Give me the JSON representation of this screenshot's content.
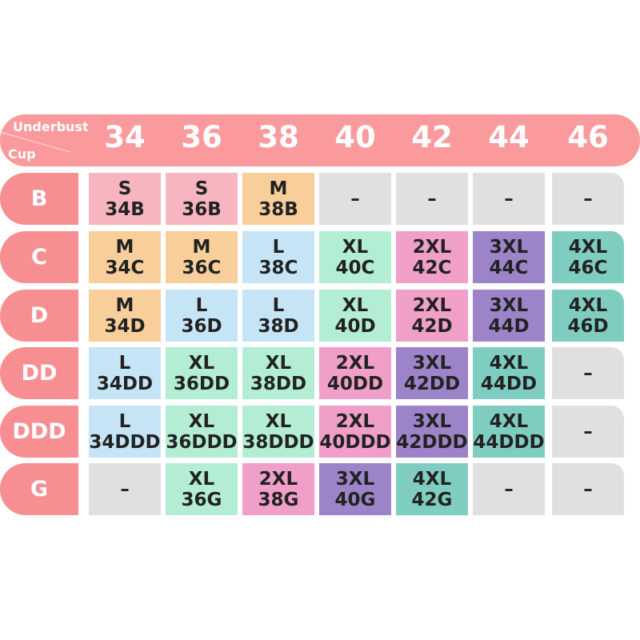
{
  "chart_data": {
    "type": "table",
    "corner_labels": {
      "top": "Underbust",
      "bottom": "Cup"
    },
    "columns": [
      "34",
      "36",
      "38",
      "40",
      "42",
      "44",
      "46"
    ],
    "colors": {
      "header": "#fa9a9c",
      "row_header": "#f78f92",
      "S": "#f7b6bf",
      "M": "#f8cf9b",
      "L": "#c5e5f6",
      "XL": "#b3eed4",
      "2XL": "#f09fc9",
      "3XL": "#9d84c8",
      "4XL": "#7fcdc1",
      "none": "#e0e0e0"
    },
    "rows": [
      {
        "cup": "B",
        "cells": [
          [
            "S",
            "34B"
          ],
          [
            "S",
            "36B"
          ],
          [
            "M",
            "38B"
          ],
          [
            "–",
            ""
          ],
          [
            "–",
            ""
          ],
          [
            "–",
            ""
          ],
          [
            "–",
            ""
          ]
        ]
      },
      {
        "cup": "C",
        "cells": [
          [
            "M",
            "34C"
          ],
          [
            "M",
            "36C"
          ],
          [
            "L",
            "38C"
          ],
          [
            "XL",
            "40C"
          ],
          [
            "2XL",
            "42C"
          ],
          [
            "3XL",
            "44C"
          ],
          [
            "4XL",
            "46C"
          ]
        ]
      },
      {
        "cup": "D",
        "cells": [
          [
            "M",
            "34D"
          ],
          [
            "L",
            "36D"
          ],
          [
            "L",
            "38D"
          ],
          [
            "XL",
            "40D"
          ],
          [
            "2XL",
            "42D"
          ],
          [
            "3XL",
            "44D"
          ],
          [
            "4XL",
            "46D"
          ]
        ]
      },
      {
        "cup": "DD",
        "cells": [
          [
            "L",
            "34DD"
          ],
          [
            "XL",
            "36DD"
          ],
          [
            "XL",
            "38DD"
          ],
          [
            "2XL",
            "40DD"
          ],
          [
            "3XL",
            "42DD"
          ],
          [
            "4XL",
            "44DD"
          ],
          [
            "–",
            ""
          ]
        ]
      },
      {
        "cup": "DDD",
        "cells": [
          [
            "L",
            "34DDD"
          ],
          [
            "XL",
            "36DDD"
          ],
          [
            "XL",
            "38DDD"
          ],
          [
            "2XL",
            "40DDD"
          ],
          [
            "3XL",
            "42DDD"
          ],
          [
            "4XL",
            "44DDD"
          ],
          [
            "–",
            ""
          ]
        ]
      },
      {
        "cup": "G",
        "cells": [
          [
            "–",
            ""
          ],
          [
            "XL",
            "36G"
          ],
          [
            "2XL",
            "38G"
          ],
          [
            "3XL",
            "40G"
          ],
          [
            "4XL",
            "42G"
          ],
          [
            "–",
            ""
          ],
          [
            "–",
            ""
          ]
        ]
      }
    ]
  }
}
